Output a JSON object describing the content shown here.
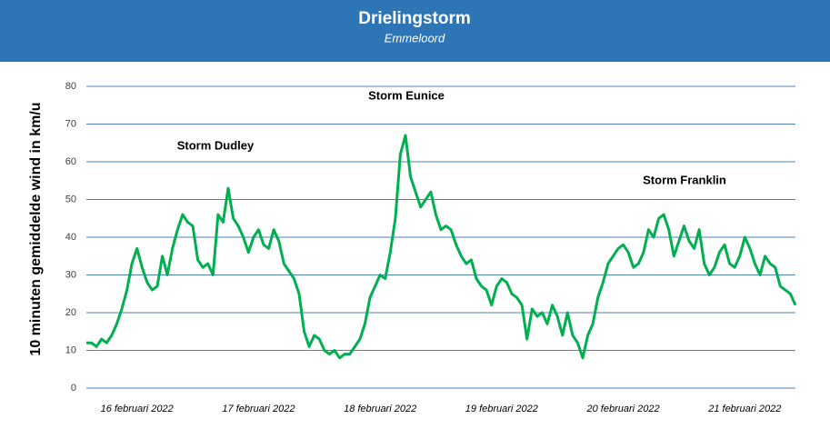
{
  "chart_data": {
    "type": "line",
    "title": "Drielingstorm",
    "subtitle": "Emmeloord",
    "y_label": "10 minuten gemiddelde wind in km/u",
    "annotations": [
      "Storm Dudley",
      "Storm Eunice",
      "Storm Franklin"
    ],
    "categories": [
      null,
      null,
      null,
      null,
      null,
      null,
      null,
      null,
      null,
      null,
      "16 februari 2022",
      null,
      null,
      null,
      null,
      null,
      null,
      null,
      null,
      null,
      null,
      null,
      null,
      null,
      null,
      null,
      null,
      null,
      null,
      null,
      null,
      null,
      null,
      null,
      "17 februari 2022",
      null,
      null,
      null,
      null,
      null,
      null,
      null,
      null,
      null,
      null,
      null,
      null,
      null,
      null,
      null,
      null,
      null,
      null,
      null,
      null,
      null,
      null,
      null,
      "18 februari 2022",
      null,
      null,
      null,
      null,
      null,
      null,
      null,
      null,
      null,
      null,
      null,
      null,
      null,
      null,
      null,
      null,
      null,
      null,
      null,
      null,
      null,
      null,
      null,
      "19 februari 2022",
      null,
      null,
      null,
      null,
      null,
      null,
      null,
      null,
      null,
      null,
      null,
      null,
      null,
      null,
      null,
      null,
      null,
      null,
      null,
      null,
      null,
      null,
      null,
      "20 februari 2022",
      null,
      null,
      null,
      null,
      null,
      null,
      null,
      null,
      null,
      null,
      null,
      null,
      null,
      null,
      null,
      null,
      null,
      null,
      null,
      null,
      null,
      null,
      null,
      "21 februari 2022",
      null,
      null,
      null,
      null,
      null,
      null,
      null,
      null,
      null,
      null
    ],
    "values": [
      12,
      12,
      11,
      13,
      12,
      14,
      17,
      21,
      26,
      33,
      37,
      32,
      28,
      26,
      27,
      35,
      30,
      37,
      42,
      46,
      44,
      43,
      34,
      32,
      33,
      30,
      46,
      44,
      53,
      45,
      43,
      40,
      36,
      40,
      42,
      38,
      37,
      42,
      39,
      33,
      31,
      29,
      25,
      15,
      11,
      14,
      13,
      10,
      9,
      10,
      8,
      9,
      9,
      11,
      13,
      17,
      24,
      27,
      30,
      29,
      36,
      45,
      62,
      67,
      56,
      52,
      48,
      50,
      52,
      46,
      42,
      43,
      42,
      38,
      35,
      33,
      34,
      29,
      27,
      26,
      22,
      27,
      29,
      28,
      25,
      24,
      22,
      13,
      21,
      19,
      20,
      17,
      22,
      19,
      14,
      20,
      14,
      12,
      8,
      14,
      17,
      24,
      28,
      33,
      35,
      37,
      38,
      36,
      32,
      33,
      36,
      42,
      40,
      45,
      46,
      42,
      35,
      39,
      43,
      39,
      37,
      42,
      33,
      30,
      32,
      36,
      38,
      33,
      32,
      35,
      40,
      37,
      33,
      30,
      35,
      33,
      32,
      27,
      26,
      25,
      22
    ],
    "color": "#00b050",
    "grid_color": "#4f81bd",
    "ylim": [
      0,
      80
    ],
    "yticks": [
      0,
      10,
      20,
      30,
      40,
      50,
      60,
      70,
      80
    ],
    "grid": true
  }
}
